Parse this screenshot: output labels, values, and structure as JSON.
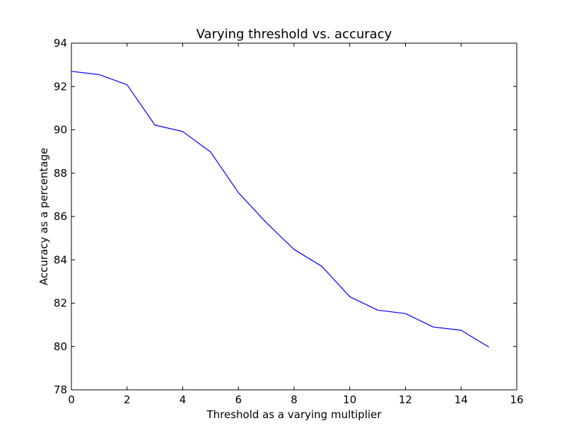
{
  "chart_data": {
    "type": "line",
    "title": "Varying threshold vs. accuracy",
    "xlabel": "Threshold as a varying multiplier",
    "ylabel": "Accuracy as a percentage",
    "xlim": [
      0,
      16
    ],
    "ylim": [
      78,
      94
    ],
    "xticks": [
      0,
      2,
      4,
      6,
      8,
      10,
      12,
      14,
      16
    ],
    "yticks": [
      78,
      80,
      82,
      84,
      86,
      88,
      90,
      92,
      94
    ],
    "grid": false,
    "series": [
      {
        "color": "#0000ff",
        "x": [
          0,
          1,
          2,
          3,
          4,
          5,
          6,
          7,
          8,
          9,
          10,
          11,
          12,
          13,
          14,
          15
        ],
        "y": [
          92.7,
          92.55,
          92.08,
          90.22,
          89.92,
          88.98,
          87.1,
          85.72,
          84.48,
          83.7,
          82.3,
          81.68,
          81.52,
          80.9,
          80.75,
          79.97
        ]
      }
    ]
  }
}
